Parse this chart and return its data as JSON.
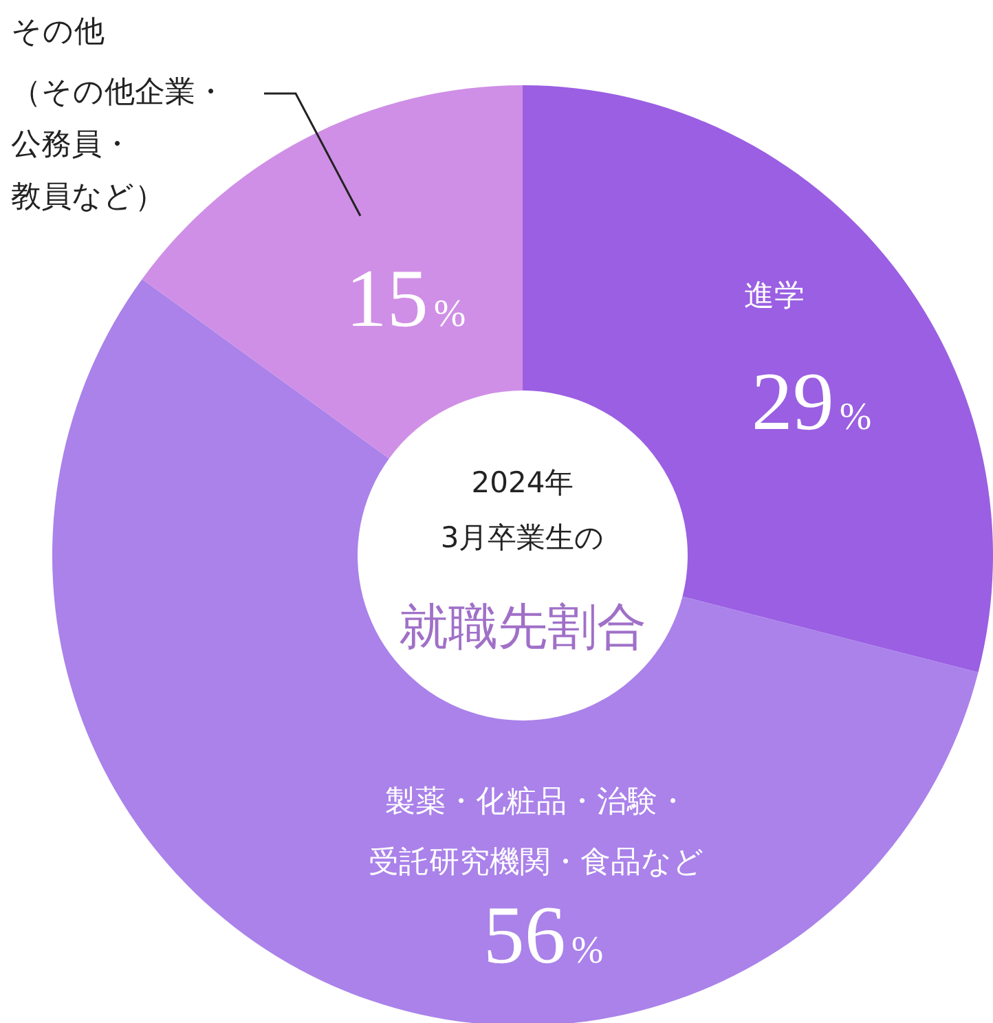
{
  "chart_data": {
    "type": "donut",
    "title": "2024年3月卒業生の",
    "subtitle": "就職先割合",
    "categories": [
      "進学",
      "製薬・化粧品・治験・受託研究機関・食品など",
      "その他（その他企業・公務員・教員など）"
    ],
    "values": [
      29,
      56,
      15
    ],
    "colors": [
      "#9a5fe2",
      "#aa82ea",
      "#cf8fe6"
    ],
    "value_labels": [
      "29%",
      "56%",
      "15%"
    ]
  }
}
